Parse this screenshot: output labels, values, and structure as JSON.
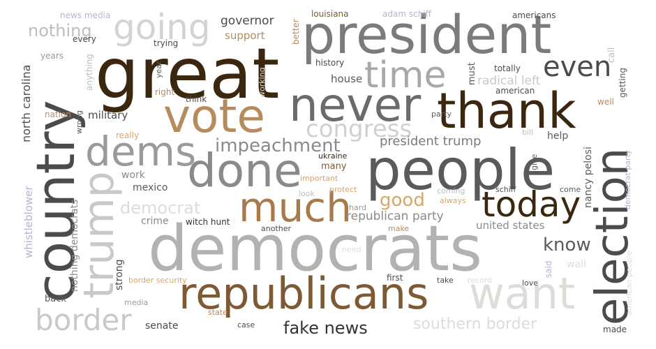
{
  "palette": {
    "dark_brown": "#3b2710",
    "brown": "#7d5a34",
    "tan": "#b68c5e",
    "orange_tan": "#d8a66a",
    "dark_gray": "#4b4b4b",
    "gray": "#7b7b7b",
    "mid_gray": "#9a9a9a",
    "light_gray": "#c9c9c9",
    "pale_gray": "#dfdcd8",
    "lavender": "#b6b3d4"
  },
  "words": [
    {
      "text": "great"
    },
    {
      "text": "president"
    },
    {
      "text": "democrats"
    },
    {
      "text": "country"
    },
    {
      "text": "people"
    },
    {
      "text": "republicans"
    },
    {
      "text": "thank"
    },
    {
      "text": "election"
    },
    {
      "text": "never"
    },
    {
      "text": "vote"
    },
    {
      "text": "done"
    },
    {
      "text": "dems"
    },
    {
      "text": "much"
    },
    {
      "text": "want"
    },
    {
      "text": "today"
    },
    {
      "text": "trump"
    },
    {
      "text": "time"
    },
    {
      "text": "going"
    },
    {
      "text": "border"
    },
    {
      "text": "even"
    },
    {
      "text": "congress"
    },
    {
      "text": "impeachment"
    },
    {
      "text": "know"
    },
    {
      "text": "fake news"
    },
    {
      "text": "southern border"
    },
    {
      "text": "democrat"
    },
    {
      "text": "good"
    },
    {
      "text": "nothing"
    },
    {
      "text": "president trump"
    },
    {
      "text": "republican party"
    },
    {
      "text": "radical left"
    },
    {
      "text": "united states"
    },
    {
      "text": "north carolina"
    },
    {
      "text": "nothing democrats"
    },
    {
      "text": "governor"
    },
    {
      "text": "military"
    },
    {
      "text": "mexico"
    },
    {
      "text": "nancy pelosi"
    },
    {
      "text": "whistleblower"
    },
    {
      "text": "support"
    },
    {
      "text": "house"
    },
    {
      "text": "strong"
    },
    {
      "text": "work"
    },
    {
      "text": "crime"
    },
    {
      "text": "senate"
    },
    {
      "text": "help"
    },
    {
      "text": "many"
    },
    {
      "text": "back"
    },
    {
      "text": "wall"
    },
    {
      "text": "ukraine"
    },
    {
      "text": "must"
    },
    {
      "text": "witch hunt"
    },
    {
      "text": "louisiana"
    },
    {
      "text": "adam schiff"
    },
    {
      "text": "americans"
    },
    {
      "text": "news media"
    },
    {
      "text": "every"
    },
    {
      "text": "trying"
    },
    {
      "text": "years"
    },
    {
      "text": "anything"
    },
    {
      "text": "history"
    },
    {
      "text": "better"
    },
    {
      "text": "totally"
    },
    {
      "text": "american"
    },
    {
      "text": "call"
    },
    {
      "text": "getting"
    },
    {
      "text": "well"
    },
    {
      "text": "year"
    },
    {
      "text": "right"
    },
    {
      "text": "think"
    },
    {
      "text": "nation"
    },
    {
      "text": "wrong"
    },
    {
      "text": "party"
    },
    {
      "text": "really"
    },
    {
      "text": "bill"
    },
    {
      "text": "give"
    },
    {
      "text": "democrat party"
    },
    {
      "text": "important"
    },
    {
      "text": "look"
    },
    {
      "text": "protect"
    },
    {
      "text": "always"
    },
    {
      "text": "coming"
    },
    {
      "text": "schiff"
    },
    {
      "text": "come"
    },
    {
      "text": "hard"
    },
    {
      "text": "make"
    },
    {
      "text": "another"
    },
    {
      "text": "need"
    },
    {
      "text": "said"
    },
    {
      "text": "first"
    },
    {
      "text": "take"
    },
    {
      "text": "record"
    },
    {
      "text": "love"
    },
    {
      "text": "border security"
    },
    {
      "text": "media"
    },
    {
      "text": "state"
    },
    {
      "text": "case"
    },
    {
      "text": "made"
    },
    {
      "text": "american people"
    },
    {
      "text": "working"
    }
  ]
}
